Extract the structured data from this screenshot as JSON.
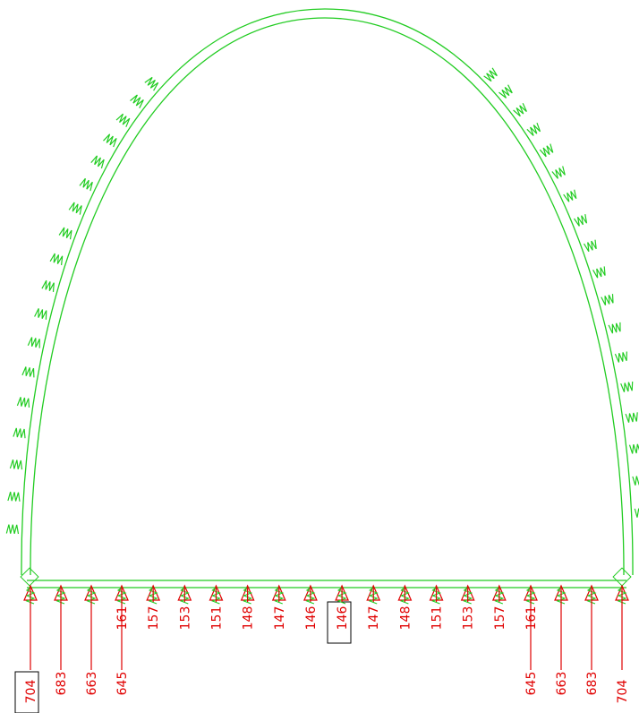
{
  "reactions": {
    "upper_labels": [
      "161",
      "157",
      "153",
      "151",
      "148",
      "147",
      "146",
      "146",
      "147",
      "148",
      "151",
      "153",
      "157",
      "161"
    ],
    "lower_labels": [
      "704",
      "683",
      "663",
      "645",
      "645",
      "663",
      "683",
      "704"
    ]
  }
}
